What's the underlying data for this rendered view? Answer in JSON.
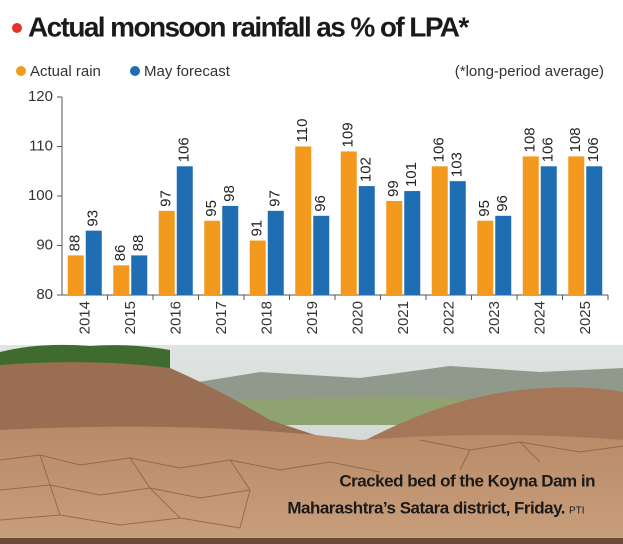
{
  "chart_data": {
    "type": "bar",
    "title": "Actual monsoon rainfall as % of LPA*",
    "note": "(*long-period average)",
    "categories": [
      "2014",
      "2015",
      "2016",
      "2017",
      "2018",
      "2019",
      "2020",
      "2021",
      "2022",
      "2023",
      "2024",
      "2025"
    ],
    "series": [
      {
        "name": "Actual rain",
        "color": "#f39a1e",
        "values": [
          88,
          86,
          97,
          95,
          91,
          110,
          109,
          99,
          106,
          95,
          108,
          108
        ]
      },
      {
        "name": "May forecast",
        "color": "#1f6db3",
        "values": [
          93,
          88,
          106,
          98,
          97,
          96,
          102,
          101,
          103,
          96,
          106,
          106
        ]
      }
    ],
    "ylim": [
      80,
      120
    ],
    "yticks": [
      80,
      90,
      100,
      110,
      120
    ],
    "grid": false,
    "caption": [
      "Cracked bed of the Koyna Dam in",
      "Maharashtra’s Satara district, Friday."
    ],
    "credit": "PTI"
  }
}
